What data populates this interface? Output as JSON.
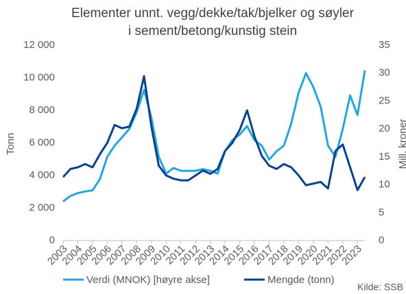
{
  "chart_data": {
    "type": "line",
    "title_lines": [
      "Elementer unnt. vegg/dekke/tak/bjelker og søyler",
      "i sement/betong/kunstig stein"
    ],
    "ylabel": "Tonn",
    "y2label": "Mill. kroner",
    "source": "Kilde: SSB",
    "x": [
      2003,
      2003.5,
      2004,
      2004.5,
      2005,
      2005.5,
      2006,
      2006.5,
      2007,
      2007.5,
      2008,
      2008.5,
      2009,
      2009.5,
      2010,
      2010.5,
      2011,
      2011.5,
      2012,
      2012.5,
      2013,
      2013.5,
      2014,
      2014.5,
      2015,
      2015.5,
      2016,
      2016.5,
      2017,
      2017.5,
      2018,
      2018.5,
      2019,
      2019.5,
      2020,
      2020.5,
      2021,
      2021.5,
      2022,
      2022.5,
      2023,
      2023.5
    ],
    "xlim": [
      2003,
      2023.5
    ],
    "xticks": [
      2003,
      2004,
      2005,
      2006,
      2007,
      2008,
      2009,
      2010,
      2011,
      2012,
      2013,
      2014,
      2015,
      2016,
      2017,
      2018,
      2019,
      2020,
      2021,
      2022,
      2023
    ],
    "ylim": [
      0,
      12000
    ],
    "yticks": [
      0,
      {
        "value": 2000,
        "label": "2 000"
      },
      {
        "value": 4000,
        "label": "4 000"
      },
      {
        "value": 6000,
        "label": "6 000"
      },
      {
        "value": 8000,
        "label": "8 000"
      },
      {
        "value": 10000,
        "label": "10 000"
      },
      {
        "value": 12000,
        "label": "12 000"
      }
    ],
    "y2lim": [
      0,
      35
    ],
    "y2ticks": [
      0,
      5,
      10,
      15,
      20,
      25,
      30,
      35
    ],
    "series": [
      {
        "name": "Verdi (MNOK) [høyre akse]",
        "color": "#27a3dd",
        "axis": "y2",
        "values": [
          7,
          8,
          8.5,
          8.8,
          9,
          11,
          15,
          17,
          18.5,
          20,
          23,
          27,
          22,
          15,
          12,
          13,
          12.5,
          12.5,
          12.5,
          12.8,
          12.5,
          12,
          16,
          18,
          19,
          20.5,
          18,
          17,
          14.5,
          16,
          17,
          21,
          26.5,
          30,
          27.5,
          24,
          17,
          15,
          20,
          26,
          22.5,
          30.5
        ]
      },
      {
        "name": "Mengde (tonn)",
        "color": "#07418a",
        "values": [
          3900,
          4400,
          4500,
          4700,
          4500,
          5300,
          6000,
          7100,
          6900,
          7000,
          8100,
          10100,
          7000,
          4600,
          4000,
          3800,
          3700,
          3700,
          4000,
          4300,
          4100,
          4400,
          5500,
          6000,
          6800,
          8000,
          6400,
          5200,
          4600,
          4400,
          4700,
          4500,
          4000,
          3400,
          3500,
          3600,
          3200,
          5500,
          5900,
          4500,
          3100,
          3900
        ]
      }
    ]
  }
}
